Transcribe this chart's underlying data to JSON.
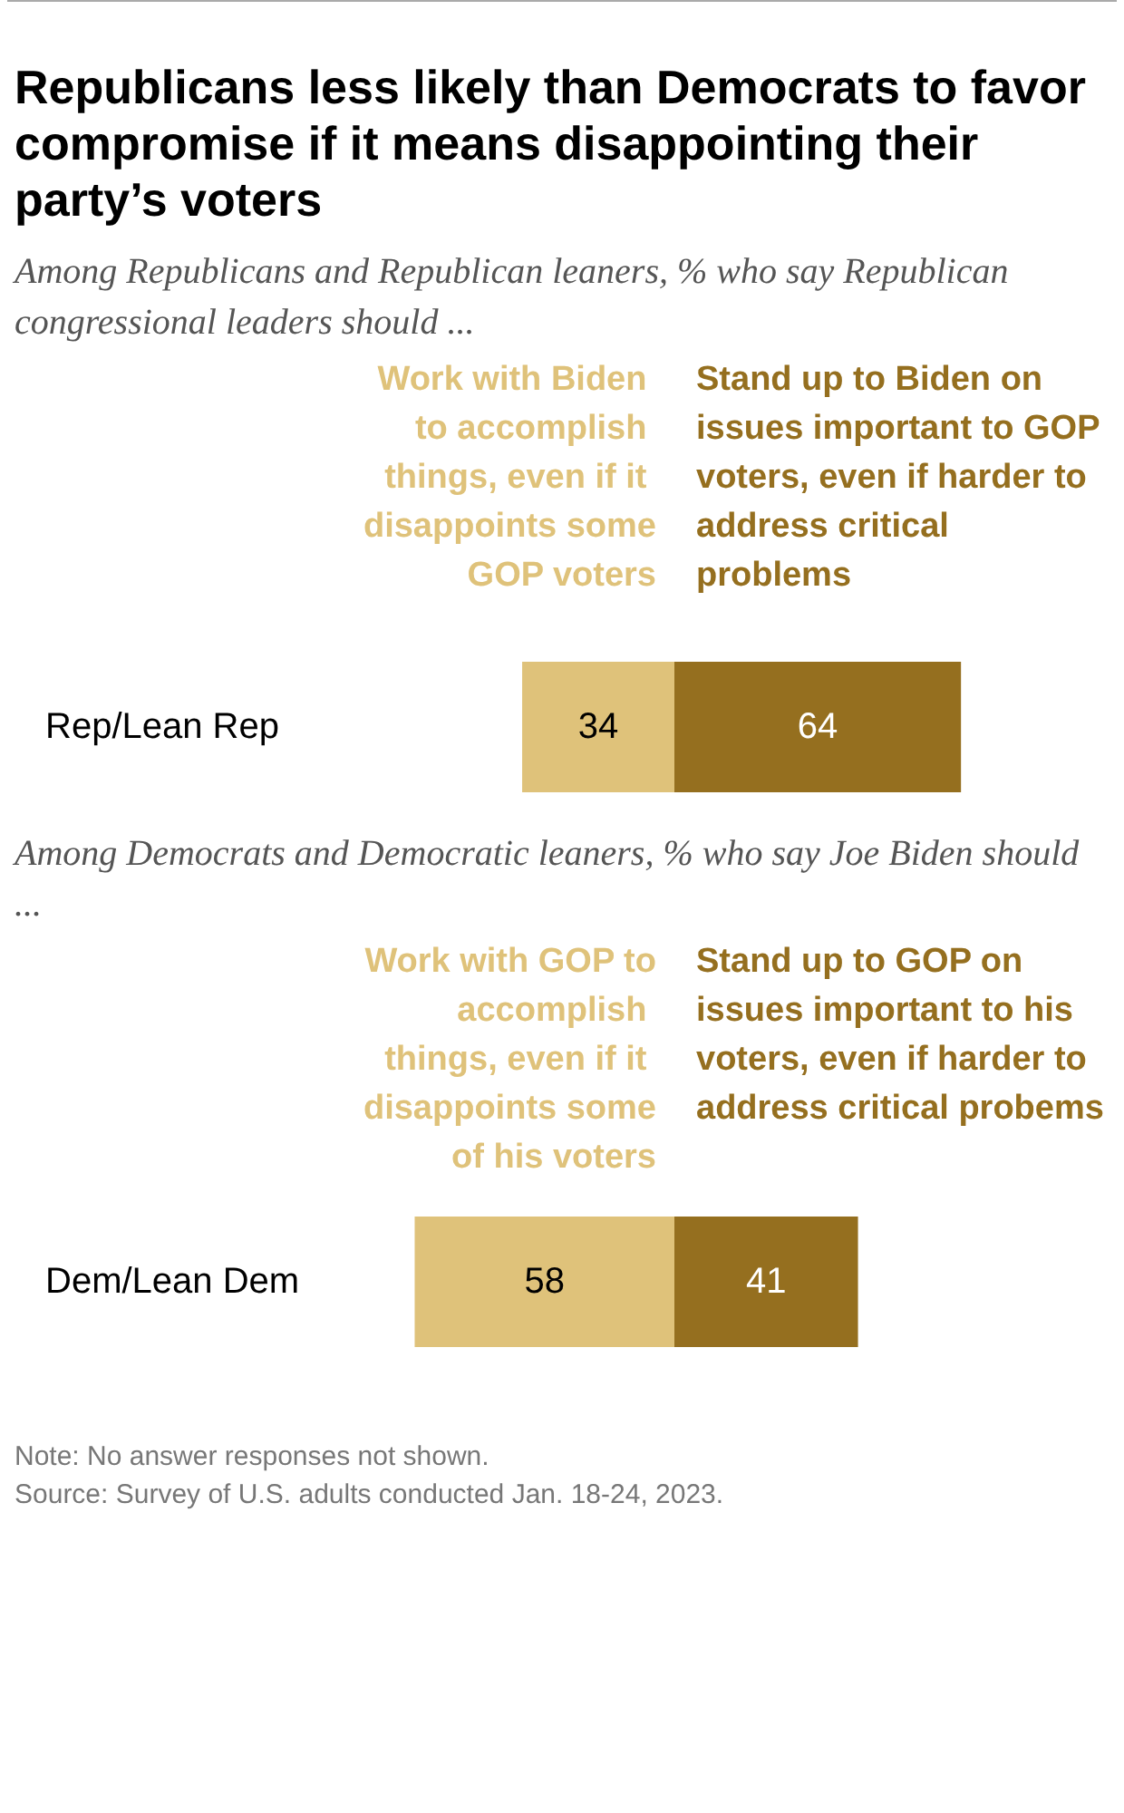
{
  "chart_data": [
    {
      "type": "bar",
      "orientation": "horizontal",
      "stacked": true,
      "title": "Republicans less likely than Democrats to favor compromise if it means disappointing their party’s voters",
      "subtitle": "Among Republicans and Republican leaners, % who say Republican congressional leaders should ...",
      "categories": [
        "Rep/Lean Rep"
      ],
      "series": [
        {
          "name": "Work with Biden to accomplish things, even if it disappoints some GOP voters",
          "color": "#dfc27a",
          "values": [
            34
          ]
        },
        {
          "name": "Stand up to Biden on issues important to GOP voters, even if harder to address critical problems",
          "color": "#956f1f",
          "values": [
            64
          ]
        }
      ],
      "tick_labels": "y",
      "data_labels": true
    },
    {
      "type": "bar",
      "orientation": "horizontal",
      "stacked": true,
      "subtitle": "Among Democrats and Democratic leaners, % who say Joe Biden should ...",
      "categories": [
        "Dem/Lean Dem"
      ],
      "series": [
        {
          "name": "Work with GOP to accomplish things, even if it disappoints some of his voters",
          "color": "#dfc27a",
          "values": [
            58
          ]
        },
        {
          "name": "Stand up to GOP on issues important to his voters, even if harder to address critical probems",
          "color": "#956f1f",
          "values": [
            41
          ]
        }
      ],
      "tick_labels": "y",
      "data_labels": true,
      "annotations": [
        "Note: No answer responses not shown.",
        "Source: Survey of U.S. adults conducted Jan. 18-24, 2023."
      ]
    }
  ]
}
